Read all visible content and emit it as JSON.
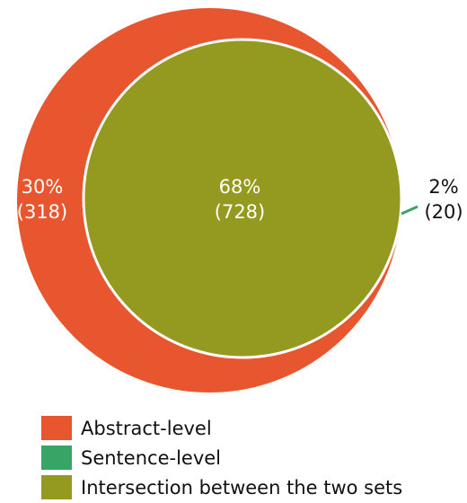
{
  "chart_data": {
    "type": "venn",
    "sets": [
      {
        "name": "Abstract-level",
        "only_percent": 30,
        "only_count": 318,
        "label_pct": "30%",
        "label_count": "(318)",
        "color": "#E8562F"
      },
      {
        "name": "Sentence-level",
        "only_percent": 2,
        "only_count": 20,
        "label_pct": "2%",
        "label_count": "(20)",
        "color": "#36A565"
      }
    ],
    "intersection": {
      "name": "Intersection between the two sets",
      "percent": 68,
      "count": 728,
      "label_pct": "68%",
      "label_count": "(728)",
      "color": "#94991F"
    },
    "legend": [
      "Abstract-level",
      "Sentence-level",
      "Intersection between the two sets"
    ],
    "legend_position": "bottom-left"
  }
}
